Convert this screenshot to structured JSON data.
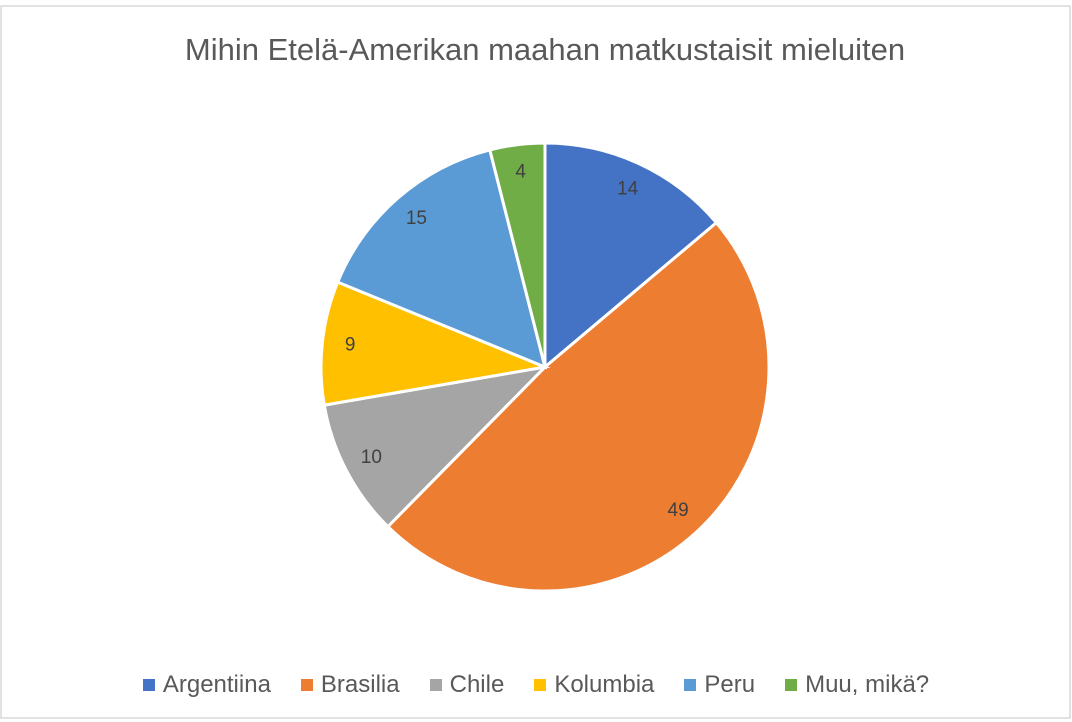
{
  "chart_data": {
    "type": "pie",
    "title": "Mihin Etelä-Amerikan maahan matkustaisit mieluiten",
    "categories": [
      "Argentiina",
      "Brasilia",
      "Chile",
      "Kolumbia",
      "Peru",
      "Muu, mikä?"
    ],
    "values": [
      14,
      49,
      10,
      9,
      15,
      4
    ],
    "colors": [
      "#4472c4",
      "#ed7d31",
      "#a5a5a5",
      "#ffc000",
      "#5b9bd5",
      "#70ad47"
    ],
    "legend": "bottom"
  }
}
